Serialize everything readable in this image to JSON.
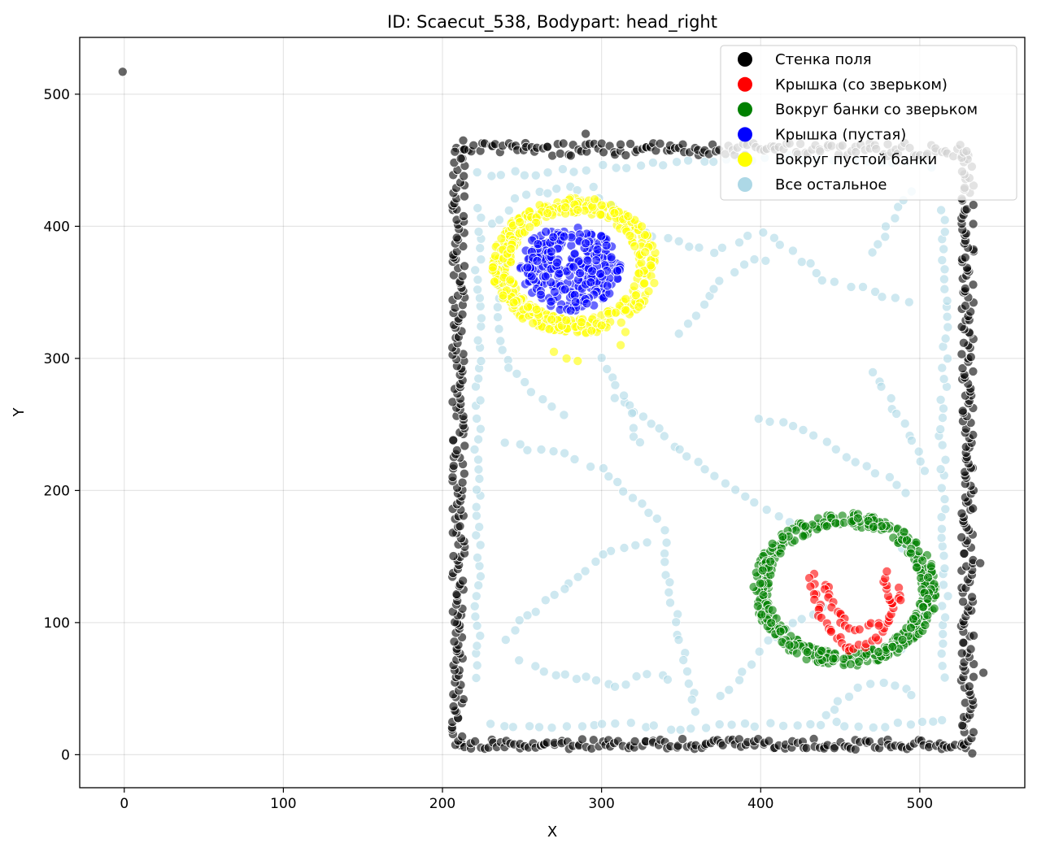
{
  "chart_data": {
    "type": "scatter",
    "title": "ID: Scaecut_538, Bodypart: head_right",
    "xlabel": "X",
    "ylabel": "Y",
    "xlim": [
      -28,
      566
    ],
    "ylim": [
      -25,
      543
    ],
    "xticks": [
      0,
      100,
      200,
      300,
      400,
      500
    ],
    "yticks": [
      0,
      100,
      200,
      300,
      400,
      500
    ],
    "grid": true,
    "legend_position": "top-right",
    "series": [
      {
        "name": "Все остальное",
        "color": "#add8e6",
        "generated": "trajectory",
        "paths": [
          [
            [
              222,
              440
            ],
            [
              260,
              440
            ],
            [
              300,
              445
            ],
            [
              340,
              447
            ],
            [
              380,
              450
            ],
            [
              420,
              452
            ],
            [
              460,
              450
            ],
            [
              500,
              448
            ],
            [
              518,
              440
            ]
          ],
          [
            [
              230,
              22
            ],
            [
              270,
              22
            ],
            [
              310,
              24
            ],
            [
              350,
              20
            ],
            [
              390,
              22
            ],
            [
              430,
              24
            ],
            [
              470,
              22
            ],
            [
              510,
              24
            ],
            [
              520,
              30
            ]
          ],
          [
            [
              222,
              60
            ],
            [
              222,
              120
            ],
            [
              223,
              180
            ],
            [
              222,
              240
            ],
            [
              223,
              300
            ],
            [
              222,
              360
            ],
            [
              224,
              420
            ]
          ],
          [
            [
              515,
              60
            ],
            [
              516,
              120
            ],
            [
              515,
              180
            ],
            [
              514,
              240
            ],
            [
              516,
              300
            ],
            [
              515,
              360
            ],
            [
              514,
              420
            ]
          ],
          [
            [
              300,
              420
            ],
            [
              320,
              400
            ],
            [
              340,
              390
            ],
            [
              370,
              380
            ],
            [
              400,
              395
            ],
            [
              420,
              380
            ],
            [
              440,
              360
            ],
            [
              470,
              350
            ],
            [
              500,
              340
            ]
          ],
          [
            [
              310,
              270
            ],
            [
              330,
              250
            ],
            [
              350,
              230
            ],
            [
              370,
              210
            ],
            [
              390,
              195
            ],
            [
              410,
              180
            ],
            [
              430,
              165
            ]
          ],
          [
            [
              240,
              235
            ],
            [
              270,
              230
            ],
            [
              300,
              215
            ],
            [
              315,
              200
            ],
            [
              330,
              185
            ],
            [
              345,
              165
            ]
          ],
          [
            [
              340,
              160
            ],
            [
              342,
              130
            ],
            [
              348,
              100
            ],
            [
              352,
              70
            ],
            [
              358,
              40
            ],
            [
              362,
              25
            ]
          ],
          [
            [
              250,
              70
            ],
            [
              270,
              60
            ],
            [
              290,
              58
            ],
            [
              310,
              50
            ],
            [
              330,
              62
            ],
            [
              350,
              55
            ]
          ],
          [
            [
              240,
              380
            ],
            [
              235,
              330
            ],
            [
              240,
              300
            ],
            [
              250,
              280
            ],
            [
              265,
              270
            ],
            [
              280,
              250
            ]
          ],
          [
            [
              400,
              256
            ],
            [
              420,
              250
            ],
            [
              440,
              236
            ],
            [
              460,
              222
            ],
            [
              480,
              210
            ],
            [
              495,
              190
            ]
          ],
          [
            [
              470,
              290
            ],
            [
              480,
              270
            ],
            [
              490,
              250
            ],
            [
              500,
              230
            ],
            [
              505,
              210
            ]
          ],
          [
            [
              350,
              320
            ],
            [
              365,
              340
            ],
            [
              375,
              360
            ],
            [
              390,
              372
            ],
            [
              410,
              375
            ]
          ],
          [
            [
              300,
              300
            ],
            [
              310,
              280
            ],
            [
              318,
              265
            ],
            [
              322,
              240
            ],
            [
              330,
              230
            ]
          ],
          [
            [
              230,
              400
            ],
            [
              245,
              420
            ],
            [
              260,
              425
            ],
            [
              280,
              428
            ],
            [
              300,
              430
            ]
          ],
          [
            [
              440,
              110
            ],
            [
              420,
              100
            ],
            [
              405,
              85
            ],
            [
              395,
              70
            ],
            [
              385,
              55
            ],
            [
              370,
              40
            ]
          ],
          [
            [
              490,
              80
            ],
            [
              500,
              100
            ],
            [
              505,
              130
            ],
            [
              495,
              150
            ],
            [
              480,
              160
            ]
          ],
          [
            [
              440,
              30
            ],
            [
              455,
              45
            ],
            [
              470,
              55
            ],
            [
              490,
              50
            ],
            [
              500,
              40
            ]
          ],
          [
            [
              330,
              160
            ],
            [
              300,
              150
            ],
            [
              280,
              130
            ],
            [
              260,
              110
            ],
            [
              245,
              95
            ],
            [
              235,
              80
            ]
          ],
          [
            [
              470,
              380
            ],
            [
              480,
              400
            ],
            [
              490,
              420
            ],
            [
              500,
              430
            ]
          ]
        ]
      },
      {
        "name": "Стенка поля",
        "color": "#000000",
        "generated": "frame",
        "frame": {
          "x_left": 210,
          "x_right": 530,
          "y_bottom": 8,
          "y_top": 458
        },
        "extra_points": [
          [
            -1,
            517
          ],
          [
            533,
            1
          ],
          [
            540,
            62
          ],
          [
            538,
            145
          ],
          [
            213,
            465
          ],
          [
            290,
            470
          ]
        ]
      },
      {
        "name": "Вокруг пустой банки",
        "color": "#ffff00",
        "generated": "ring",
        "center": [
          283,
          370
        ],
        "radius": [
          40,
          52
        ],
        "extra_points": [
          [
            270,
            305
          ],
          [
            285,
            298
          ],
          [
            278,
            300
          ],
          [
            312,
            310
          ],
          [
            315,
            320
          ],
          [
            300,
            325
          ]
        ]
      },
      {
        "name": "Крышка (пустая)",
        "color": "#0000ff",
        "generated": "disc",
        "center": [
          280,
          368
        ],
        "radius": 32
      },
      {
        "name": "Вокруг банки со зверьком",
        "color": "#008000",
        "generated": "ring",
        "center": [
          453,
          125
        ],
        "radius": [
          48,
          58
        ]
      },
      {
        "name": "Крышка (со зверьком)",
        "color": "#ff0000",
        "generated": "shape",
        "paths": [
          [
            [
              432,
              135
            ],
            [
              434,
              120
            ],
            [
              438,
              105
            ],
            [
              445,
              92
            ],
            [
              452,
              82
            ],
            [
              460,
              80
            ],
            [
              470,
              85
            ],
            [
              478,
              95
            ],
            [
              482,
              110
            ],
            [
              480,
              125
            ],
            [
              478,
              140
            ]
          ],
          [
            [
              440,
              130
            ],
            [
              445,
              115
            ],
            [
              452,
              100
            ],
            [
              460,
              95
            ],
            [
              470,
              98
            ],
            [
              478,
              100
            ]
          ],
          [
            [
              487,
              125
            ],
            [
              486,
              112
            ]
          ]
        ]
      }
    ]
  }
}
